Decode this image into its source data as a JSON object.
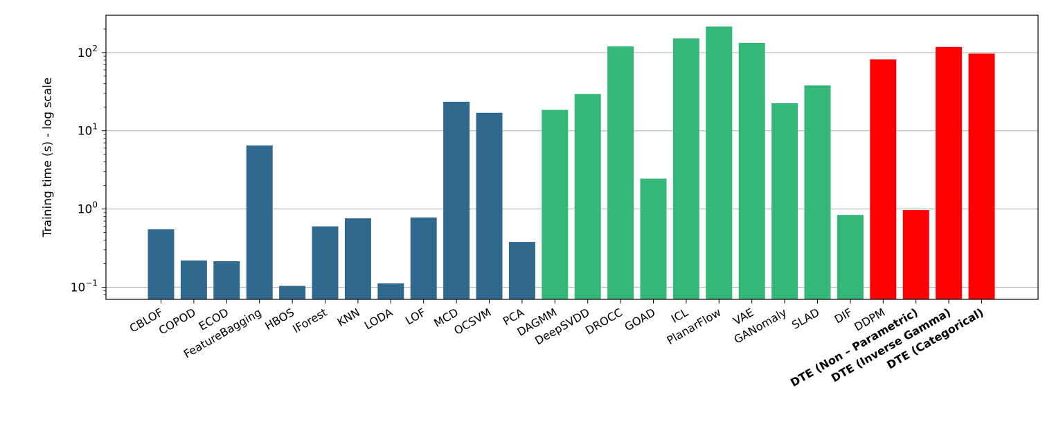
{
  "chart_data": {
    "type": "bar",
    "title": "",
    "xlabel": "",
    "ylabel": "Training time (s) - log scale",
    "yscale": "log",
    "ylim": [
      0.07,
      300
    ],
    "yticks": [
      {
        "value": 0.1,
        "mantissa": "10",
        "exp": "−1"
      },
      {
        "value": 1,
        "mantissa": "10",
        "exp": "0"
      },
      {
        "value": 10,
        "mantissa": "10",
        "exp": "1"
      },
      {
        "value": 100,
        "mantissa": "10",
        "exp": "2"
      }
    ],
    "grid": "horizontal",
    "colors": {
      "classical": "#31688e",
      "deep": "#35b779",
      "dte": "#ff0000"
    },
    "categories": [
      "CBLOF",
      "COPOD",
      "ECOD",
      "FeatureBagging",
      "HBOS",
      "IForest",
      "KNN",
      "LODA",
      "LOF",
      "MCD",
      "OCSVM",
      "PCA",
      "DAGMM",
      "DeepSVDD",
      "DROCC",
      "GOAD",
      "ICL",
      "PlanarFlow",
      "VAE",
      "GANomaly",
      "SLAD",
      "DIF",
      "DDPM",
      "DTE (Non – Parametric)",
      "DTE (Inverse Gamma)",
      "DTE (Categorical)"
    ],
    "values": [
      0.55,
      0.22,
      0.215,
      6.5,
      0.104,
      0.6,
      0.76,
      0.112,
      0.78,
      23.5,
      17,
      0.38,
      18.5,
      29.5,
      120,
      2.45,
      152,
      215,
      133,
      22.5,
      38,
      0.84,
      82,
      0.97,
      118,
      97
    ],
    "groups": [
      "classical",
      "classical",
      "classical",
      "classical",
      "classical",
      "classical",
      "classical",
      "classical",
      "classical",
      "classical",
      "classical",
      "classical",
      "deep",
      "deep",
      "deep",
      "deep",
      "deep",
      "deep",
      "deep",
      "deep",
      "deep",
      "deep",
      "dte",
      "dte",
      "dte",
      "dte"
    ],
    "bold_labels": [
      "DTE (Non – Parametric)",
      "DTE (Inverse Gamma)",
      "DTE (Categorical)"
    ]
  }
}
